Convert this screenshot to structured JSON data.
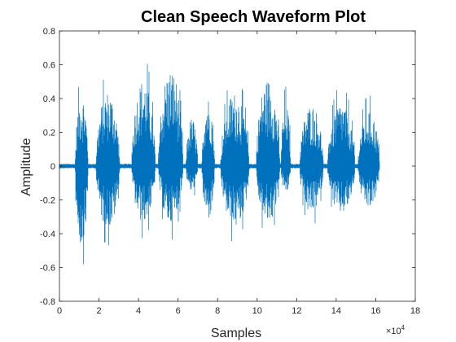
{
  "chart_data": {
    "type": "line",
    "title": "Clean Speech Waveform Plot",
    "xlabel": "Samples",
    "ylabel": "Amplitude",
    "x_exponent_label": "×10",
    "x_exponent_power": "4",
    "x_scale": 10000,
    "xlim": [
      0,
      180000
    ],
    "ylim": [
      -0.8,
      0.8
    ],
    "x_ticks": [
      0,
      20000,
      40000,
      60000,
      80000,
      100000,
      120000,
      140000,
      160000,
      180000
    ],
    "x_tick_labels": [
      "0",
      "2",
      "4",
      "6",
      "8",
      "10",
      "12",
      "14",
      "16",
      "18"
    ],
    "y_ticks": [
      -0.8,
      -0.6,
      -0.4,
      -0.2,
      0,
      0.2,
      0.4,
      0.6,
      0.8
    ],
    "y_tick_labels": [
      "-0.8",
      "-0.6",
      "-0.4",
      "-0.2",
      "0",
      "0.2",
      "0.4",
      "0.6",
      "0.8"
    ],
    "grid": false,
    "box": true,
    "line_color": "#0072BD",
    "signal_end": 162000,
    "segments": [
      {
        "start": 8000,
        "end": 14500,
        "max": 0.55,
        "min": -0.61
      },
      {
        "start": 18500,
        "end": 30500,
        "max": 0.56,
        "min": -0.47
      },
      {
        "start": 36500,
        "end": 48500,
        "max": 0.65,
        "min": -0.43
      },
      {
        "start": 50000,
        "end": 62500,
        "max": 0.73,
        "min": -0.44
      },
      {
        "start": 64000,
        "end": 70000,
        "max": 0.36,
        "min": -0.2
      },
      {
        "start": 72000,
        "end": 78500,
        "max": 0.52,
        "min": -0.4
      },
      {
        "start": 81500,
        "end": 96000,
        "max": 0.55,
        "min": -0.46
      },
      {
        "start": 99500,
        "end": 111500,
        "max": 0.65,
        "min": -0.43
      },
      {
        "start": 112000,
        "end": 117000,
        "max": 0.47,
        "min": -0.2
      },
      {
        "start": 121500,
        "end": 133500,
        "max": 0.46,
        "min": -0.36
      },
      {
        "start": 135500,
        "end": 149500,
        "max": 0.48,
        "min": -0.36
      },
      {
        "start": 151000,
        "end": 162000,
        "max": 0.42,
        "min": -0.32
      }
    ]
  }
}
